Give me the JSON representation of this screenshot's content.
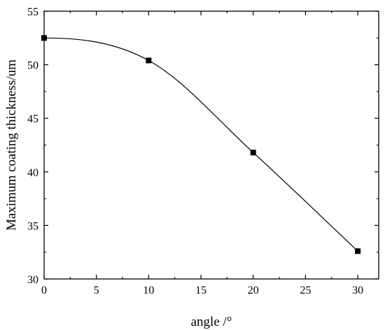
{
  "chart_data": {
    "type": "line",
    "title": "",
    "xlabel": "angle /°",
    "ylabel": "Maximum coating thickness/um",
    "xlim": [
      0,
      32
    ],
    "ylim": [
      30,
      55
    ],
    "xticks": [
      0,
      5,
      10,
      15,
      20,
      25,
      30
    ],
    "yticks": [
      30,
      35,
      40,
      45,
      50,
      55
    ],
    "x_tick_labels": [
      "0",
      "5",
      "10",
      "15",
      "20",
      "25",
      "30"
    ],
    "y_tick_labels": [
      "30",
      "35",
      "40",
      "45",
      "50",
      "55"
    ],
    "grid": false,
    "legend": "none",
    "series": [
      {
        "x": [
          0,
          10,
          20,
          30
        ],
        "values": [
          52.5,
          50.4,
          41.8,
          32.6
        ],
        "marker": "square",
        "line": "smooth",
        "color": "#000000"
      }
    ]
  }
}
